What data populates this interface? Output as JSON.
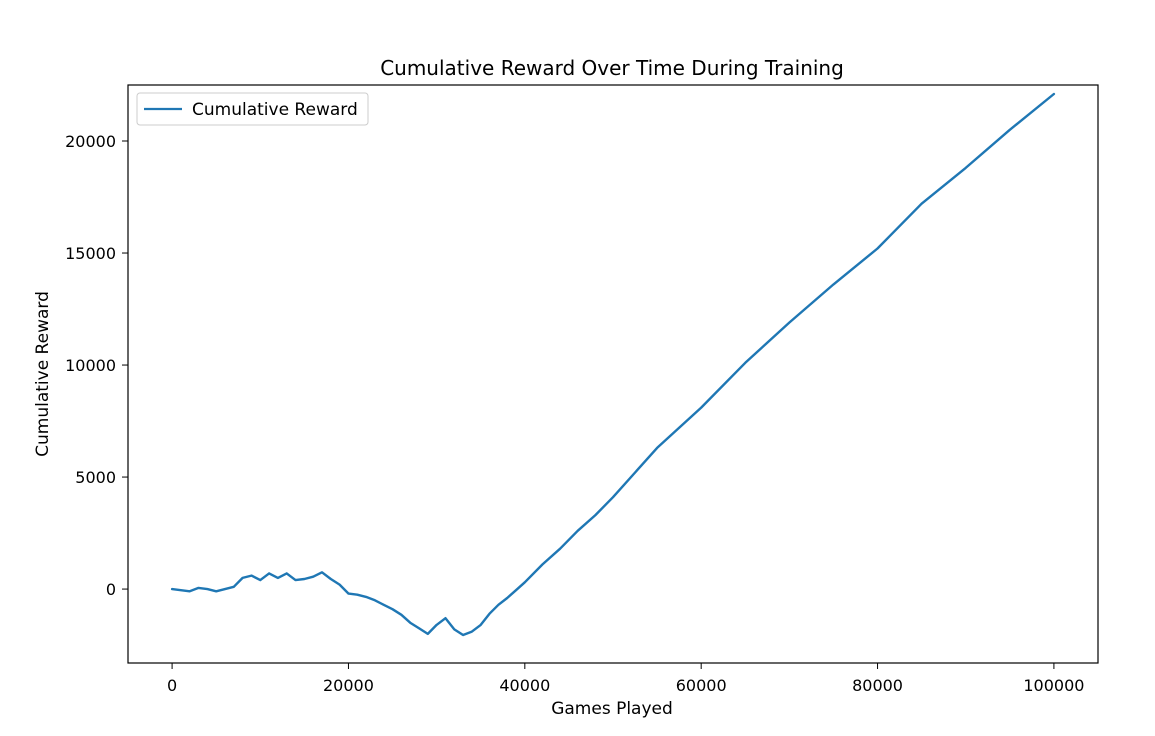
{
  "chart_data": {
    "type": "line",
    "title": "Cumulative Reward Over Time During Training",
    "xlabel": "Games Played",
    "ylabel": "Cumulative Reward",
    "xlim": [
      -5000,
      105000
    ],
    "ylim": [
      -3300,
      22500
    ],
    "xticks": [
      0,
      20000,
      40000,
      60000,
      80000,
      100000
    ],
    "xtick_labels": [
      "0",
      "20000",
      "40000",
      "60000",
      "80000",
      "100000"
    ],
    "yticks": [
      0,
      5000,
      10000,
      15000,
      20000
    ],
    "ytick_labels": [
      "0",
      "5000",
      "10000",
      "15000",
      "20000"
    ],
    "grid": false,
    "legend": {
      "position": "upper-left",
      "entries": [
        "Cumulative Reward"
      ]
    },
    "series": [
      {
        "name": "Cumulative Reward",
        "color": "#1f77b4",
        "x": [
          0,
          1000,
          2000,
          3000,
          4000,
          5000,
          6000,
          7000,
          8000,
          9000,
          10000,
          11000,
          12000,
          13000,
          14000,
          15000,
          16000,
          17000,
          18000,
          19000,
          20000,
          21000,
          22000,
          23000,
          24000,
          25000,
          26000,
          27000,
          28000,
          29000,
          30000,
          31000,
          32000,
          33000,
          34000,
          35000,
          36000,
          37000,
          38000,
          39000,
          40000,
          42000,
          44000,
          46000,
          48000,
          50000,
          55000,
          60000,
          65000,
          70000,
          75000,
          80000,
          85000,
          90000,
          95000,
          100000
        ],
        "values": [
          0,
          -50,
          -100,
          50,
          0,
          -100,
          0,
          100,
          500,
          600,
          400,
          700,
          500,
          700,
          400,
          450,
          550,
          750,
          450,
          200,
          -200,
          -250,
          -350,
          -500,
          -700,
          -900,
          -1150,
          -1500,
          -1750,
          -2000,
          -1600,
          -1300,
          -1800,
          -2050,
          -1900,
          -1600,
          -1100,
          -700,
          -400,
          -50,
          300,
          1100,
          1800,
          2600,
          3300,
          4100,
          6300,
          8100,
          10100,
          11900,
          13600,
          15200,
          17200,
          18800,
          20500,
          22100
        ]
      }
    ]
  }
}
